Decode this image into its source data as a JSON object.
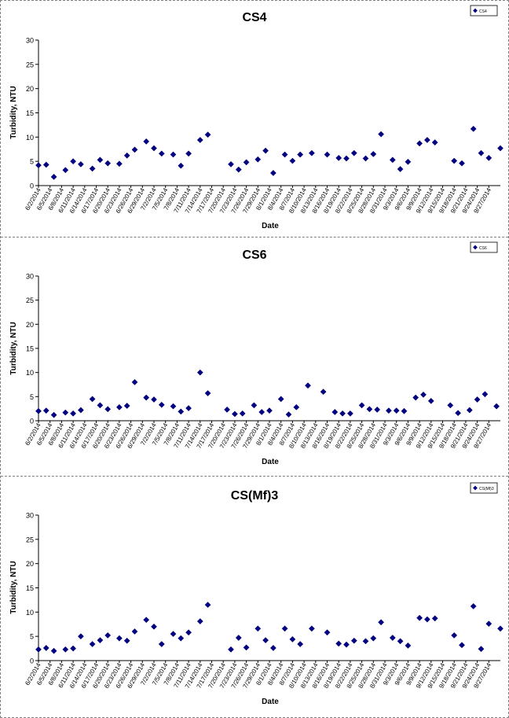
{
  "chart_data": [
    {
      "type": "scatter",
      "title": "CS4",
      "xlabel": "Date",
      "ylabel": "Turbidity, NTU",
      "ylim": [
        0,
        30
      ],
      "yticks": [
        "0",
        "5",
        "10",
        "15",
        "20",
        "25",
        "30"
      ],
      "xlim": [
        "2014-06-02",
        "2014-09-30"
      ],
      "grid": false,
      "legend": "top-right",
      "series": [
        {
          "name": "CS4",
          "color": "#000080",
          "points": [
            [
              "2014-06-02",
              4.2
            ],
            [
              "2014-06-04",
              4.3
            ],
            [
              "2014-06-06",
              1.8
            ],
            [
              "2014-06-09",
              3.2
            ],
            [
              "2014-06-11",
              5.0
            ],
            [
              "2014-06-13",
              4.4
            ],
            [
              "2014-06-16",
              3.5
            ],
            [
              "2014-06-18",
              5.3
            ],
            [
              "2014-06-20",
              4.6
            ],
            [
              "2014-06-23",
              4.5
            ],
            [
              "2014-06-25",
              6.2
            ],
            [
              "2014-06-27",
              7.4
            ],
            [
              "2014-06-30",
              9.1
            ],
            [
              "2014-07-02",
              7.7
            ],
            [
              "2014-07-04",
              6.6
            ],
            [
              "2014-07-07",
              6.4
            ],
            [
              "2014-07-09",
              4.1
            ],
            [
              "2014-07-11",
              6.6
            ],
            [
              "2014-07-14",
              9.4
            ],
            [
              "2014-07-16",
              10.5
            ],
            [
              "2014-07-22",
              4.4
            ],
            [
              "2014-07-24",
              3.3
            ],
            [
              "2014-07-26",
              4.8
            ],
            [
              "2014-07-29",
              5.4
            ],
            [
              "2014-07-31",
              7.2
            ],
            [
              "2014-08-02",
              2.6
            ],
            [
              "2014-08-05",
              6.4
            ],
            [
              "2014-08-07",
              5.1
            ],
            [
              "2014-08-09",
              6.4
            ],
            [
              "2014-08-12",
              6.7
            ],
            [
              "2014-08-16",
              6.4
            ],
            [
              "2014-08-19",
              5.7
            ],
            [
              "2014-08-21",
              5.6
            ],
            [
              "2014-08-23",
              6.7
            ],
            [
              "2014-08-26",
              5.6
            ],
            [
              "2014-08-28",
              6.5
            ],
            [
              "2014-08-30",
              10.6
            ],
            [
              "2014-09-02",
              5.3
            ],
            [
              "2014-09-04",
              3.4
            ],
            [
              "2014-09-06",
              4.9
            ],
            [
              "2014-09-09",
              8.7
            ],
            [
              "2014-09-11",
              9.4
            ],
            [
              "2014-09-13",
              8.9
            ],
            [
              "2014-09-18",
              5.1
            ],
            [
              "2014-09-20",
              4.6
            ],
            [
              "2014-09-23",
              11.7
            ],
            [
              "2014-09-25",
              6.7
            ],
            [
              "2014-09-27",
              5.7
            ],
            [
              "2014-09-30",
              7.7
            ]
          ]
        }
      ]
    },
    {
      "type": "scatter",
      "title": "CS6",
      "xlabel": "Date",
      "ylabel": "Turbidity, NTU",
      "ylim": [
        0,
        30
      ],
      "yticks": [
        "0",
        "5",
        "10",
        "15",
        "20",
        "25",
        "30"
      ],
      "xlim": [
        "2014-06-02",
        "2014-09-30"
      ],
      "grid": false,
      "legend": "top-right",
      "series": [
        {
          "name": "CS6",
          "color": "#000080",
          "points": [
            [
              "2014-06-02",
              2.0
            ],
            [
              "2014-06-04",
              2.1
            ],
            [
              "2014-06-06",
              1.2
            ],
            [
              "2014-06-09",
              1.7
            ],
            [
              "2014-06-11",
              1.5
            ],
            [
              "2014-06-13",
              2.2
            ],
            [
              "2014-06-16",
              4.5
            ],
            [
              "2014-06-18",
              3.2
            ],
            [
              "2014-06-20",
              2.4
            ],
            [
              "2014-06-23",
              2.8
            ],
            [
              "2014-06-25",
              3.1
            ],
            [
              "2014-06-27",
              8.0
            ],
            [
              "2014-06-30",
              4.8
            ],
            [
              "2014-07-02",
              4.4
            ],
            [
              "2014-07-04",
              3.3
            ],
            [
              "2014-07-07",
              3.0
            ],
            [
              "2014-07-09",
              1.9
            ],
            [
              "2014-07-11",
              2.6
            ],
            [
              "2014-07-14",
              10.0
            ],
            [
              "2014-07-16",
              5.7
            ],
            [
              "2014-07-21",
              2.3
            ],
            [
              "2014-07-23",
              1.4
            ],
            [
              "2014-07-25",
              1.5
            ],
            [
              "2014-07-28",
              3.2
            ],
            [
              "2014-07-30",
              1.8
            ],
            [
              "2014-08-01",
              2.1
            ],
            [
              "2014-08-04",
              4.5
            ],
            [
              "2014-08-06",
              1.3
            ],
            [
              "2014-08-08",
              2.8
            ],
            [
              "2014-08-11",
              7.3
            ],
            [
              "2014-08-15",
              6.0
            ],
            [
              "2014-08-18",
              1.8
            ],
            [
              "2014-08-20",
              1.5
            ],
            [
              "2014-08-22",
              1.5
            ],
            [
              "2014-08-25",
              3.2
            ],
            [
              "2014-08-27",
              2.4
            ],
            [
              "2014-08-29",
              2.3
            ],
            [
              "2014-09-01",
              2.1
            ],
            [
              "2014-09-03",
              2.1
            ],
            [
              "2014-09-05",
              2.0
            ],
            [
              "2014-09-08",
              4.8
            ],
            [
              "2014-09-10",
              5.4
            ],
            [
              "2014-09-12",
              4.1
            ],
            [
              "2014-09-17",
              3.2
            ],
            [
              "2014-09-19",
              1.6
            ],
            [
              "2014-09-22",
              2.2
            ],
            [
              "2014-09-24",
              4.4
            ],
            [
              "2014-09-26",
              5.5
            ],
            [
              "2014-09-29",
              3.0
            ]
          ]
        }
      ]
    },
    {
      "type": "scatter",
      "title": "CS(Mf)3",
      "xlabel": "Date",
      "ylabel": "Turbidity, NTU",
      "ylim": [
        0,
        30
      ],
      "yticks": [
        "0",
        "5",
        "10",
        "15",
        "20",
        "25",
        "30"
      ],
      "xlim": [
        "2014-06-02",
        "2014-09-30"
      ],
      "grid": false,
      "legend": "top-right",
      "series": [
        {
          "name": "CS(Mf)3",
          "color": "#000080",
          "points": [
            [
              "2014-06-02",
              2.3
            ],
            [
              "2014-06-04",
              2.6
            ],
            [
              "2014-06-06",
              2.0
            ],
            [
              "2014-06-09",
              2.3
            ],
            [
              "2014-06-11",
              2.5
            ],
            [
              "2014-06-13",
              5.0
            ],
            [
              "2014-06-16",
              3.4
            ],
            [
              "2014-06-18",
              4.2
            ],
            [
              "2014-06-20",
              5.2
            ],
            [
              "2014-06-23",
              4.6
            ],
            [
              "2014-06-25",
              4.1
            ],
            [
              "2014-06-27",
              6.0
            ],
            [
              "2014-06-30",
              8.4
            ],
            [
              "2014-07-02",
              7.0
            ],
            [
              "2014-07-04",
              3.4
            ],
            [
              "2014-07-07",
              5.5
            ],
            [
              "2014-07-09",
              4.6
            ],
            [
              "2014-07-11",
              5.8
            ],
            [
              "2014-07-14",
              8.1
            ],
            [
              "2014-07-16",
              11.5
            ],
            [
              "2014-07-22",
              2.3
            ],
            [
              "2014-07-24",
              4.7
            ],
            [
              "2014-07-26",
              2.7
            ],
            [
              "2014-07-29",
              6.6
            ],
            [
              "2014-07-31",
              4.2
            ],
            [
              "2014-08-02",
              2.6
            ],
            [
              "2014-08-05",
              6.6
            ],
            [
              "2014-08-07",
              4.4
            ],
            [
              "2014-08-09",
              3.4
            ],
            [
              "2014-08-12",
              6.6
            ],
            [
              "2014-08-16",
              5.8
            ],
            [
              "2014-08-19",
              3.5
            ],
            [
              "2014-08-21",
              3.3
            ],
            [
              "2014-08-23",
              4.1
            ],
            [
              "2014-08-26",
              4.0
            ],
            [
              "2014-08-28",
              4.6
            ],
            [
              "2014-08-30",
              7.9
            ],
            [
              "2014-09-02",
              4.7
            ],
            [
              "2014-09-04",
              4.0
            ],
            [
              "2014-09-06",
              3.1
            ],
            [
              "2014-09-09",
              8.8
            ],
            [
              "2014-09-11",
              8.5
            ],
            [
              "2014-09-13",
              8.7
            ],
            [
              "2014-09-18",
              5.2
            ],
            [
              "2014-09-20",
              3.2
            ],
            [
              "2014-09-23",
              11.2
            ],
            [
              "2014-09-25",
              2.4
            ],
            [
              "2014-09-27",
              7.6
            ],
            [
              "2014-09-30",
              6.6
            ]
          ]
        }
      ]
    }
  ],
  "xtick_labels": [
    [
      "6/2/2014",
      "6/5/2014",
      "6/8/2014",
      "6/11/2014",
      "6/14/2014",
      "6/17/2014",
      "6/20/2014",
      "6/23/2014",
      "6/26/2014",
      "6/29/2014",
      "7/2/2014",
      "7/5/2014",
      "7/8/2014",
      "7/11/2014",
      "7/14/2014",
      "7/17/2014",
      "7/20/2014",
      "7/23/2014",
      "7/26/2014",
      "7/29/2014",
      "8/1/2014",
      "8/4/2014",
      "8/7/2014",
      "8/10/2014",
      "8/13/2014",
      "8/16/2014",
      "8/19/2014",
      "8/22/2014",
      "8/25/2014",
      "8/28/2014",
      "8/31/2014",
      "9/3/2014",
      "9/6/2014",
      "9/9/2014",
      "9/12/2014",
      "9/15/2014",
      "9/18/2014",
      "9/21/2014",
      "9/24/2014",
      "9/27/2014"
    ],
    [
      "6/2/2014",
      "6/5/2014",
      "6/8/2014",
      "6/11/2014",
      "6/14/2014",
      "6/17/2014",
      "6/20/2014",
      "6/23/2014",
      "6/26/2014",
      "6/29/2014",
      "7/2/2014",
      "7/5/2014",
      "7/8/2014",
      "7/11/2014",
      "7/14/2014",
      "7/17/2014",
      "7/20/2014",
      "7/23/2014",
      "7/26/2014",
      "7/29/2014",
      "8/1/2014",
      "8/4/2014",
      "8/7/2014",
      "8/10/2014",
      "8/13/2014",
      "8/16/2014",
      "8/19/2014",
      "8/22/2014",
      "8/25/2014",
      "8/28/2014",
      "8/31/2014",
      "9/3/2014",
      "9/6/2014",
      "9/9/2014",
      "9/12/2014",
      "9/15/2014",
      "9/18/2014",
      "9/21/2014",
      "9/24/2014",
      "9/27/2014"
    ],
    [
      "6/2/2014",
      "6/5/2014",
      "6/8/2014",
      "6/11/2014",
      "6/14/2014",
      "6/17/2014",
      "6/20/2014",
      "6/23/2014",
      "6/26/2014",
      "6/29/2014",
      "7/2/2014",
      "7/5/2014",
      "7/8/2014",
      "7/11/2014",
      "7/14/2014",
      "7/17/2014",
      "7/20/2014",
      "7/23/2014",
      "7/26/2014",
      "7/29/2014",
      "8/1/2014",
      "8/4/2014",
      "8/7/2014",
      "8/10/2014",
      "8/13/2014",
      "8/16/2014",
      "8/19/2014",
      "8/22/2014",
      "8/25/2014",
      "8/28/2014",
      "8/31/2014",
      "9/3/2014",
      "9/6/2014",
      "9/9/2014",
      "9/12/2014",
      "9/15/2014",
      "9/18/2014",
      "9/21/2014",
      "9/24/2014",
      "9/27/2014"
    ]
  ]
}
